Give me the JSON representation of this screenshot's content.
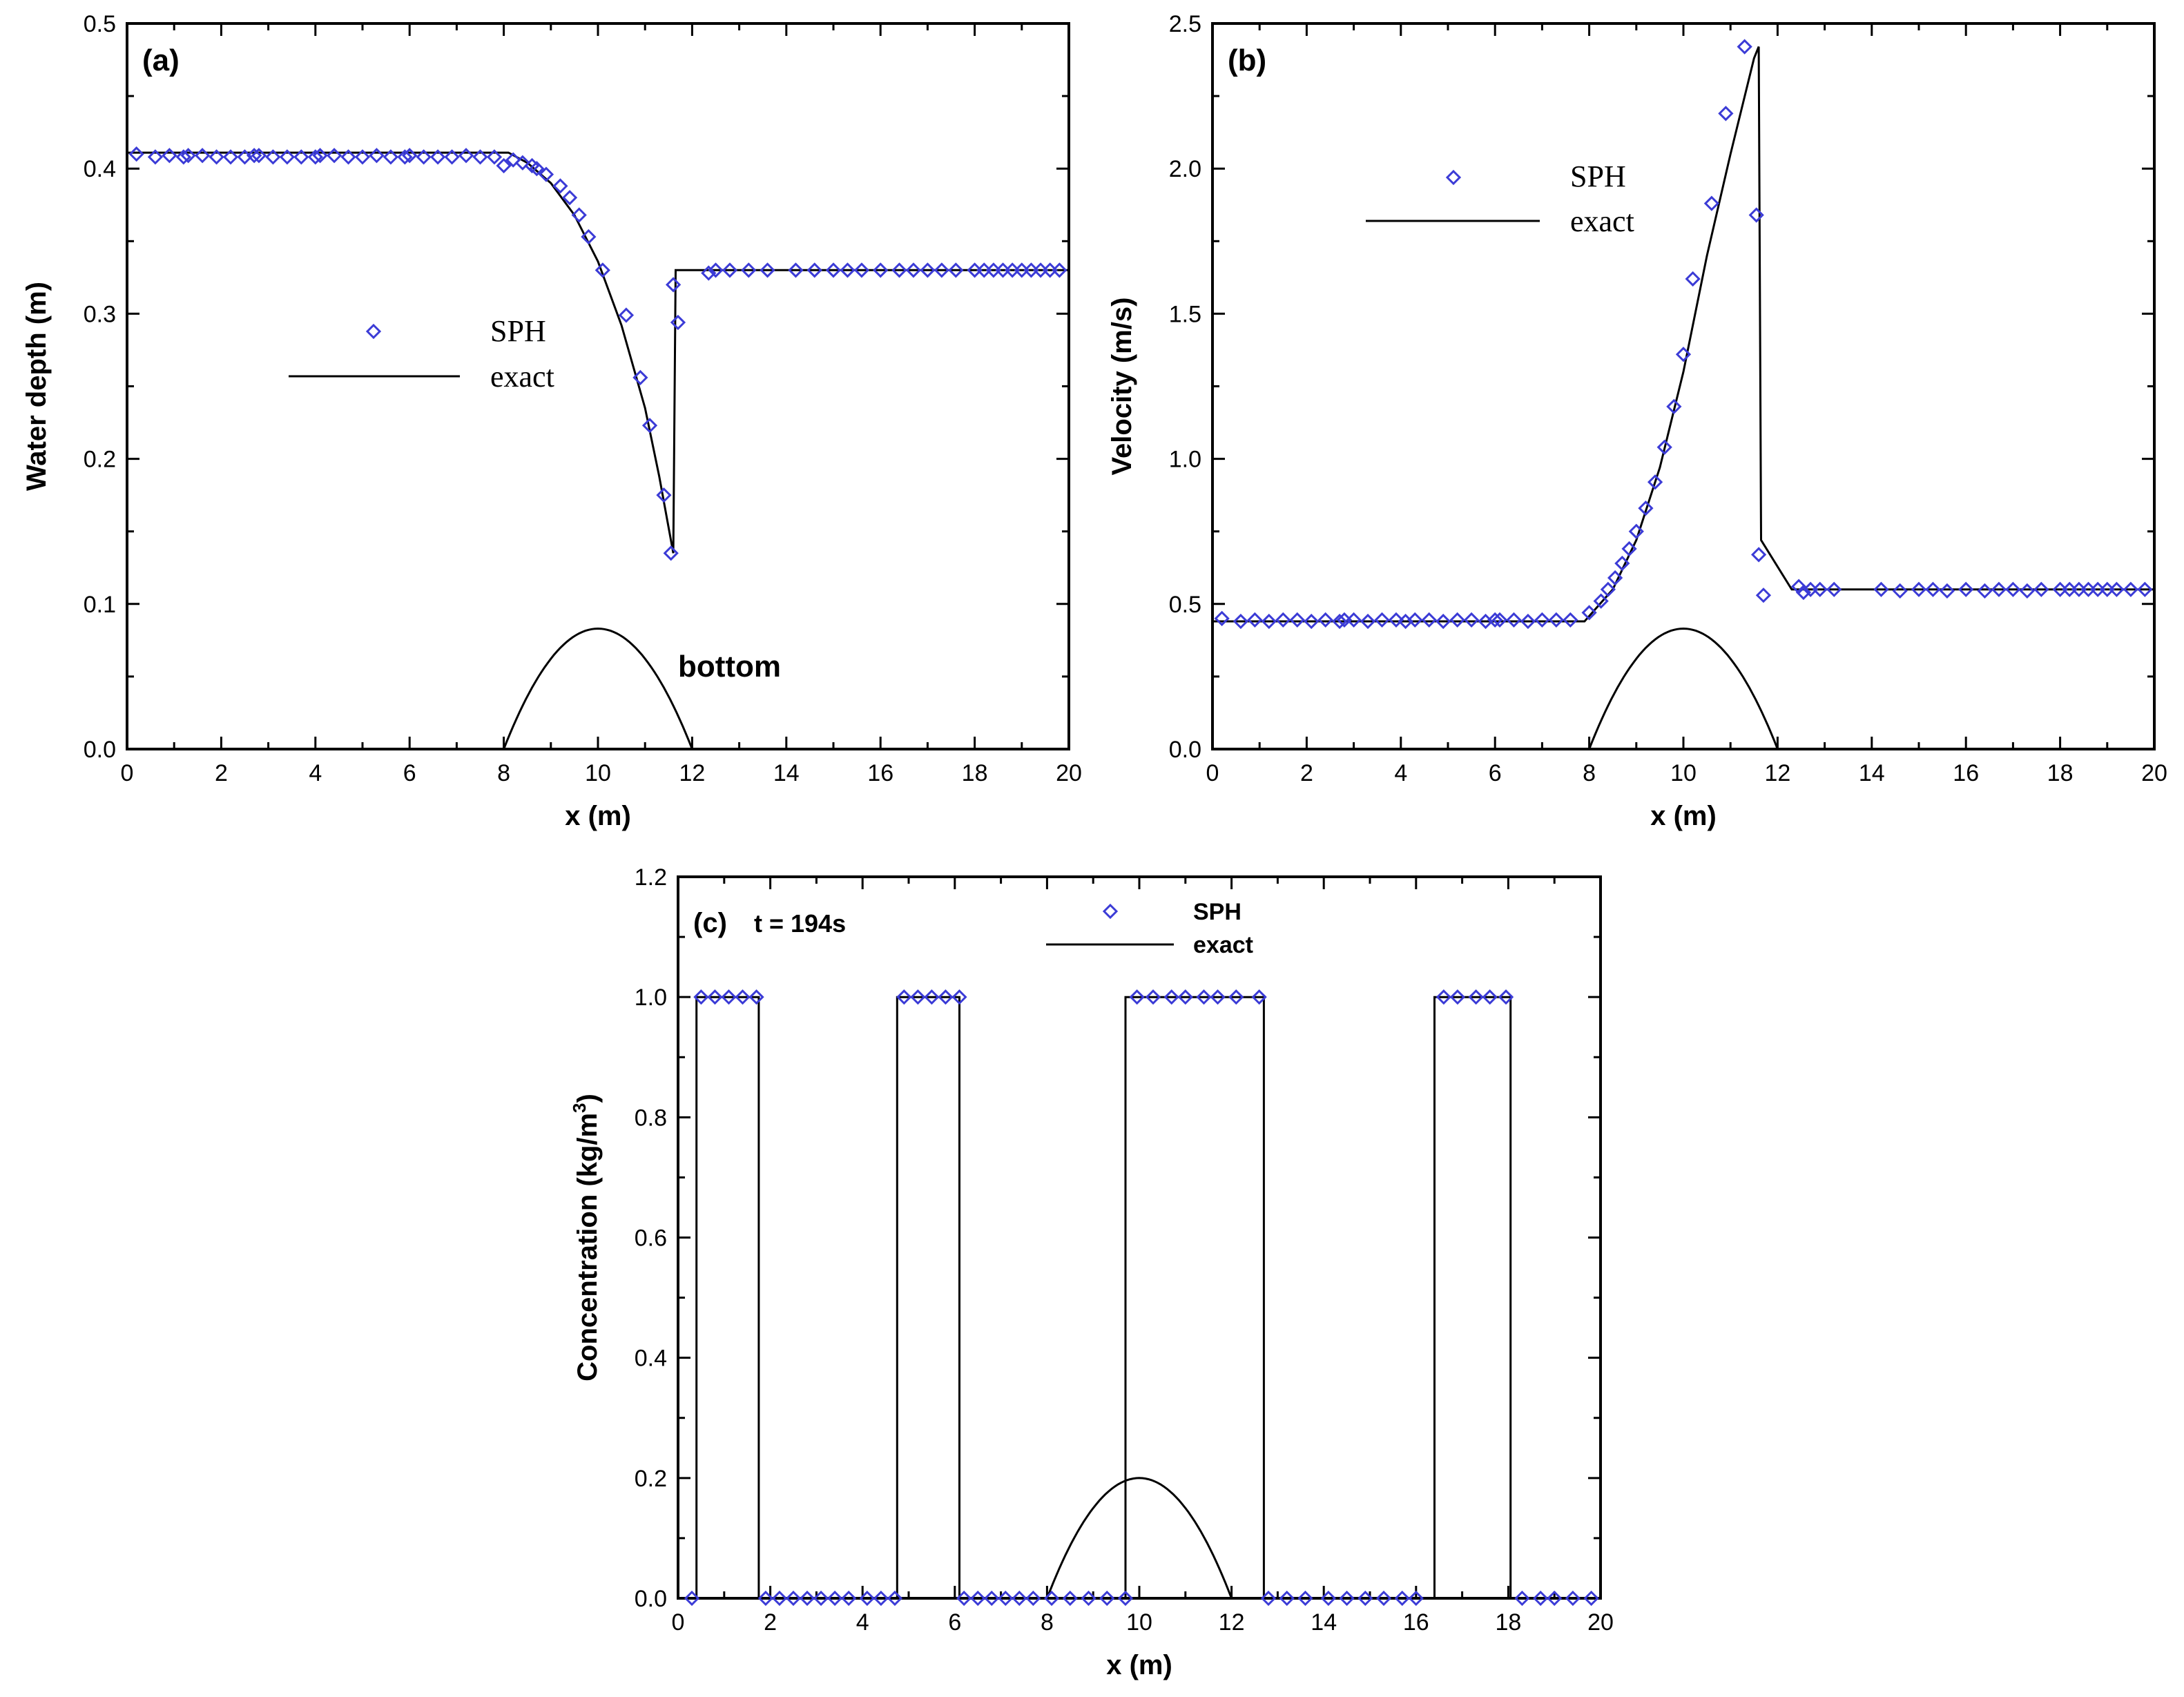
{
  "colors": {
    "sph_marker": "#3b3bd6",
    "exact_line": "#000000",
    "frame": "#000000"
  },
  "chart_data": [
    {
      "id": "a",
      "type": "scatter",
      "panel_label": "(a)",
      "xlabel": "x (m)",
      "ylabel": "Water depth (m)",
      "xlim": [
        0,
        20
      ],
      "ylim": [
        0,
        0.5
      ],
      "xticks": [
        "0",
        "2",
        "4",
        "6",
        "8",
        "10",
        "12",
        "14",
        "16",
        "18",
        "20"
      ],
      "yticks": [
        "0.0",
        "0.1",
        "0.2",
        "0.3",
        "0.4",
        "0.5"
      ],
      "legend": {
        "marker_label": "SPH",
        "line_label": "exact",
        "placement": "center-left"
      },
      "annotation": "bottom",
      "exact": {
        "x": [
          0,
          8.1,
          8.5,
          9.0,
          9.5,
          10.0,
          10.5,
          11.0,
          11.3,
          11.6,
          11.65,
          20
        ],
        "y": [
          0.411,
          0.411,
          0.404,
          0.39,
          0.368,
          0.336,
          0.292,
          0.235,
          0.188,
          0.135,
          0.33,
          0.33
        ]
      },
      "bottom": {
        "x0": 8,
        "x1": 12,
        "peak_x": 10,
        "peak_y": 0.083
      },
      "sph": {
        "x": [
          0.2,
          0.6,
          0.9,
          1.2,
          1.3,
          1.6,
          1.9,
          2.2,
          2.5,
          2.7,
          2.8,
          3.1,
          3.4,
          3.7,
          4.0,
          4.1,
          4.4,
          4.7,
          5.0,
          5.3,
          5.6,
          5.9,
          6.0,
          6.3,
          6.6,
          6.9,
          7.2,
          7.5,
          7.8,
          8.0,
          8.2,
          8.4,
          8.6,
          8.7,
          8.9,
          9.2,
          9.4,
          9.6,
          9.8,
          10.1,
          10.6,
          10.9,
          11.1,
          11.4,
          11.55,
          11.6,
          11.7,
          12.35,
          12.5,
          12.8,
          13.2,
          13.6,
          14.2,
          14.6,
          15.0,
          15.3,
          15.6,
          16.0,
          16.4,
          16.7,
          17.0,
          17.3,
          17.6,
          18.0,
          18.2,
          18.4,
          18.6,
          18.8,
          19.0,
          19.2,
          19.4,
          19.6,
          19.8
        ],
        "y": [
          0.41,
          0.408,
          0.409,
          0.408,
          0.409,
          0.409,
          0.408,
          0.408,
          0.408,
          0.409,
          0.409,
          0.408,
          0.408,
          0.408,
          0.408,
          0.409,
          0.409,
          0.408,
          0.408,
          0.409,
          0.408,
          0.408,
          0.409,
          0.408,
          0.408,
          0.408,
          0.409,
          0.408,
          0.408,
          0.402,
          0.406,
          0.404,
          0.402,
          0.4,
          0.396,
          0.388,
          0.38,
          0.368,
          0.353,
          0.33,
          0.299,
          0.256,
          0.223,
          0.175,
          0.135,
          0.32,
          0.294,
          0.328,
          0.33,
          0.33,
          0.33,
          0.33,
          0.33,
          0.33,
          0.33,
          0.33,
          0.33,
          0.33,
          0.33,
          0.33,
          0.33,
          0.33,
          0.33,
          0.33,
          0.33,
          0.33,
          0.33,
          0.33,
          0.33,
          0.33,
          0.33,
          0.33,
          0.33
        ]
      }
    },
    {
      "id": "b",
      "type": "scatter",
      "panel_label": "(b)",
      "xlabel": "x (m)",
      "ylabel": "Velocity (m/s)",
      "xlim": [
        0,
        20
      ],
      "ylim": [
        0,
        2.5
      ],
      "xticks": [
        "0",
        "2",
        "4",
        "6",
        "8",
        "10",
        "12",
        "14",
        "16",
        "18",
        "20"
      ],
      "yticks": [
        "0.0",
        "0.5",
        "1.0",
        "1.5",
        "2.0",
        "2.5"
      ],
      "legend": {
        "marker_label": "SPH",
        "line_label": "exact",
        "placement": "upper-left"
      },
      "exact": {
        "x": [
          0,
          7.9,
          8.5,
          9.0,
          9.5,
          10.0,
          10.5,
          11.0,
          11.5,
          11.6,
          11.65,
          12.3,
          20
        ],
        "y": [
          0.44,
          0.44,
          0.55,
          0.72,
          0.97,
          1.3,
          1.7,
          2.05,
          2.38,
          2.42,
          0.72,
          0.55,
          0.55
        ]
      },
      "bottom": {
        "x0": 8,
        "x1": 12,
        "peak_x": 10,
        "peak_y": 0.415
      },
      "sph": {
        "x": [
          0.2,
          0.6,
          0.9,
          1.2,
          1.5,
          1.8,
          2.1,
          2.4,
          2.7,
          2.8,
          3.0,
          3.3,
          3.6,
          3.9,
          4.1,
          4.3,
          4.6,
          4.9,
          5.2,
          5.5,
          5.8,
          6.0,
          6.1,
          6.4,
          6.7,
          7.0,
          7.3,
          7.6,
          8.0,
          8.25,
          8.4,
          8.55,
          8.7,
          8.85,
          9.0,
          9.2,
          9.4,
          9.6,
          9.8,
          10.0,
          10.2,
          10.6,
          10.9,
          11.3,
          11.55,
          11.6,
          11.7,
          12.45,
          12.55,
          12.7,
          12.9,
          13.2,
          14.2,
          14.6,
          15.0,
          15.3,
          15.6,
          16.0,
          16.4,
          16.7,
          17.0,
          17.3,
          17.6,
          18.0,
          18.2,
          18.4,
          18.6,
          18.8,
          19.0,
          19.2,
          19.5,
          19.8
        ],
        "y": [
          0.45,
          0.44,
          0.445,
          0.44,
          0.445,
          0.445,
          0.44,
          0.445,
          0.44,
          0.445,
          0.445,
          0.44,
          0.445,
          0.445,
          0.44,
          0.445,
          0.445,
          0.44,
          0.445,
          0.445,
          0.44,
          0.445,
          0.445,
          0.445,
          0.44,
          0.445,
          0.445,
          0.445,
          0.47,
          0.51,
          0.55,
          0.59,
          0.64,
          0.69,
          0.75,
          0.83,
          0.92,
          1.04,
          1.18,
          1.36,
          1.62,
          1.88,
          2.19,
          2.42,
          1.84,
          0.67,
          0.53,
          0.56,
          0.54,
          0.55,
          0.55,
          0.55,
          0.55,
          0.545,
          0.55,
          0.55,
          0.545,
          0.55,
          0.545,
          0.55,
          0.55,
          0.545,
          0.55,
          0.55,
          0.55,
          0.55,
          0.55,
          0.55,
          0.55,
          0.55,
          0.55,
          0.55
        ]
      }
    },
    {
      "id": "c",
      "type": "scatter",
      "panel_label": "(c)",
      "time_label": "t = 194s",
      "xlabel": "x (m)",
      "ylabel": "Concentration (kg/m",
      "ylabel_sup": "3",
      "ylabel_close": ")",
      "xlim": [
        0,
        20
      ],
      "ylim": [
        0,
        1.2
      ],
      "xticks": [
        "0",
        "2",
        "4",
        "6",
        "8",
        "10",
        "12",
        "14",
        "16",
        "18",
        "20"
      ],
      "yticks": [
        "0.0",
        "0.2",
        "0.4",
        "0.6",
        "0.8",
        "1.0",
        "1.2"
      ],
      "legend": {
        "marker_label": "SPH",
        "line_label": "exact",
        "placement": "top-center"
      },
      "exact": {
        "x": [
          0,
          0.4,
          0.4,
          1.75,
          1.75,
          4.75,
          4.75,
          6.1,
          6.1,
          9.7,
          9.7,
          12.7,
          12.7,
          16.4,
          16.4,
          18.05,
          18.05,
          20
        ],
        "y": [
          0,
          0,
          1,
          1,
          0,
          0,
          1,
          1,
          0,
          0,
          1,
          1,
          0,
          0,
          1,
          1,
          0,
          0
        ]
      },
      "bottom": {
        "x0": 8,
        "x1": 12,
        "peak_x": 10,
        "peak_y": 0.2
      },
      "sph": {
        "x": [
          0.3,
          0.5,
          0.8,
          1.1,
          1.4,
          1.7,
          1.9,
          2.2,
          2.5,
          2.8,
          3.1,
          3.4,
          3.7,
          4.1,
          4.4,
          4.7,
          4.9,
          5.2,
          5.5,
          5.8,
          6.1,
          6.2,
          6.5,
          6.8,
          7.1,
          7.4,
          7.7,
          8.1,
          8.5,
          8.9,
          9.3,
          9.7,
          9.95,
          10.3,
          10.7,
          11.0,
          11.4,
          11.7,
          12.1,
          12.6,
          12.8,
          13.2,
          13.6,
          14.1,
          14.5,
          14.9,
          15.3,
          15.7,
          16.0,
          16.6,
          16.9,
          17.3,
          17.6,
          17.95,
          18.3,
          18.7,
          19.0,
          19.4,
          19.8
        ],
        "y": [
          0,
          1,
          1,
          1,
          1,
          1,
          0,
          0,
          0,
          0,
          0,
          0,
          0,
          0,
          0,
          0,
          1,
          1,
          1,
          1,
          1,
          0,
          0,
          0,
          0,
          0,
          0,
          0,
          0,
          0,
          0,
          0,
          1,
          1,
          1,
          1,
          1,
          1,
          1,
          1,
          0,
          0,
          0,
          0,
          0,
          0,
          0,
          0,
          0,
          1,
          1,
          1,
          1,
          1,
          0,
          0,
          0,
          0,
          0
        ]
      }
    }
  ]
}
